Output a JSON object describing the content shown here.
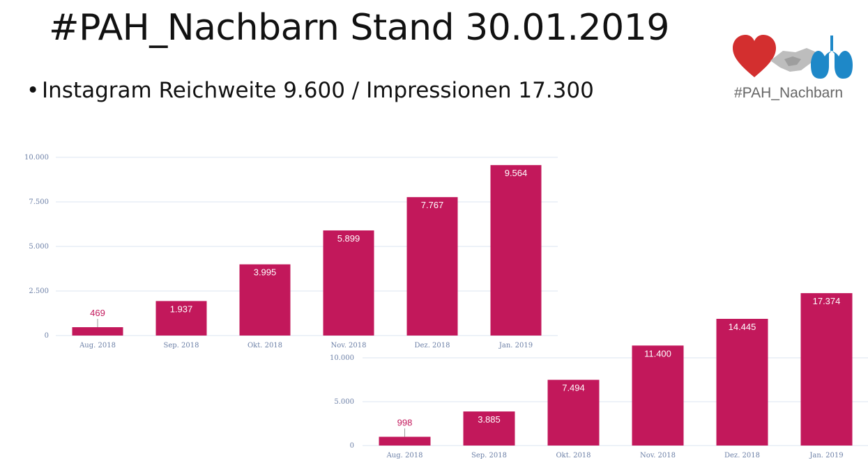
{
  "title": "#PAH_Nachbarn Stand 30.01.2019",
  "bullet": {
    "marker": "•",
    "text": "Instagram Reichweite  9.600 / Impressionen 17.300"
  },
  "logo": {
    "text": "#PAH_Nachbarn",
    "icons": [
      "heart-icon",
      "handshake-icon",
      "lungs-icon"
    ],
    "colors": {
      "heart": "#d32f2f",
      "hands": "#b0b0b0",
      "lungs": "#1e88c8"
    }
  },
  "colors": {
    "bar": "#c2185b",
    "grid": "#dbe6f2",
    "tick": "#6b7fa6"
  },
  "chart_data": [
    {
      "type": "bar",
      "categories": [
        "Aug. 2018",
        "Sep. 2018",
        "Okt. 2018",
        "Nov. 2018",
        "Dez. 2018",
        "Jan. 2019"
      ],
      "values": [
        469,
        1937,
        3995,
        5899,
        7767,
        9564
      ],
      "value_labels": [
        "469",
        "1.937",
        "3.995",
        "5.899",
        "7.767",
        "9.564"
      ],
      "ylim": [
        0,
        10000
      ],
      "yticks": [
        0,
        2500,
        5000,
        7500,
        10000
      ],
      "ytick_labels": [
        "0",
        "2.500",
        "5.000",
        "7.500",
        "10.000"
      ],
      "grid": true
    },
    {
      "type": "bar",
      "categories": [
        "Aug. 2018",
        "Sep. 2018",
        "Okt. 2018",
        "Nov. 2018",
        "Dez. 2018",
        "Jan. 2019"
      ],
      "values": [
        998,
        3885,
        7494,
        11400,
        14445,
        17374
      ],
      "value_labels": [
        "998",
        "3.885",
        "7.494",
        "11.400",
        "14.445",
        "17.374"
      ],
      "ylim": [
        0,
        20000
      ],
      "yticks": [
        0,
        5000,
        10000
      ],
      "ytick_labels": [
        "0",
        "5.000",
        "10.000"
      ],
      "grid": true
    }
  ]
}
